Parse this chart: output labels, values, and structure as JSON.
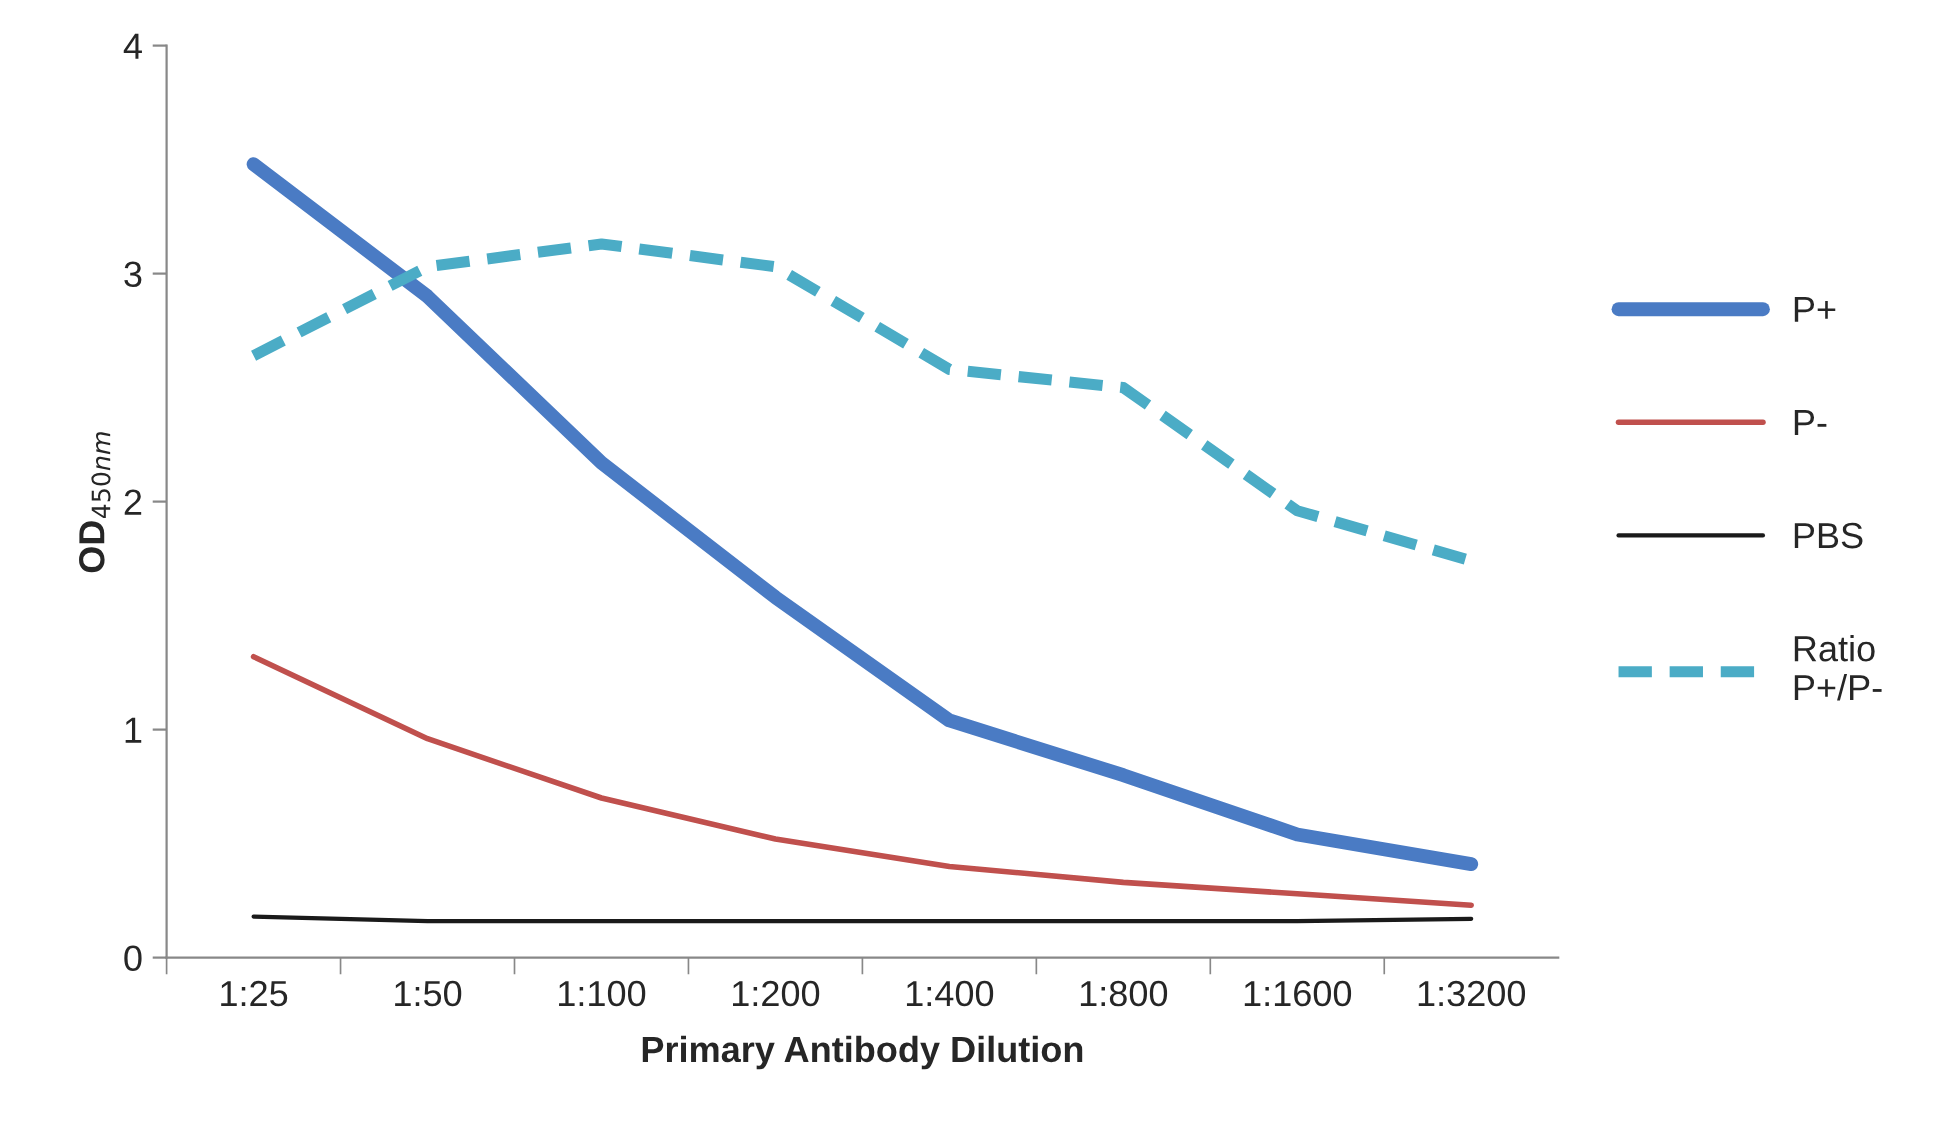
{
  "chart_data": {
    "type": "line",
    "xlabel": "Primary Antibody Dilution",
    "ylabel": "OD$_{450nm}$",
    "categories": [
      "1:25",
      "1:50",
      "1:100",
      "1:200",
      "1:400",
      "1:800",
      "1:1600",
      "1:3200"
    ],
    "series": [
      {
        "name": "P+",
        "color": "#4a7bc4",
        "line_style": "solid",
        "values": [
          3.48,
          2.9,
          2.17,
          1.58,
          1.04,
          0.8,
          0.54,
          0.41
        ]
      },
      {
        "name": "P-",
        "color": "#c0504d",
        "line_style": "solid",
        "values": [
          1.32,
          0.96,
          0.7,
          0.52,
          0.4,
          0.33,
          0.28,
          0.23
        ]
      },
      {
        "name": "PBS",
        "color": "#1a1a1a",
        "line_style": "solid",
        "values": [
          0.18,
          0.16,
          0.16,
          0.16,
          0.16,
          0.16,
          0.16,
          0.17
        ]
      },
      {
        "name": "Ratio\nP+/P-",
        "color": "#4bacc6",
        "line_style": "dashed",
        "values": [
          2.64,
          3.03,
          3.13,
          3.03,
          2.58,
          2.5,
          1.96,
          1.74
        ]
      }
    ],
    "ylim": [
      0,
      4
    ],
    "yticks": [
      0,
      1,
      2,
      3,
      4
    ],
    "grid": false,
    "legend": "right",
    "marker": "none"
  }
}
